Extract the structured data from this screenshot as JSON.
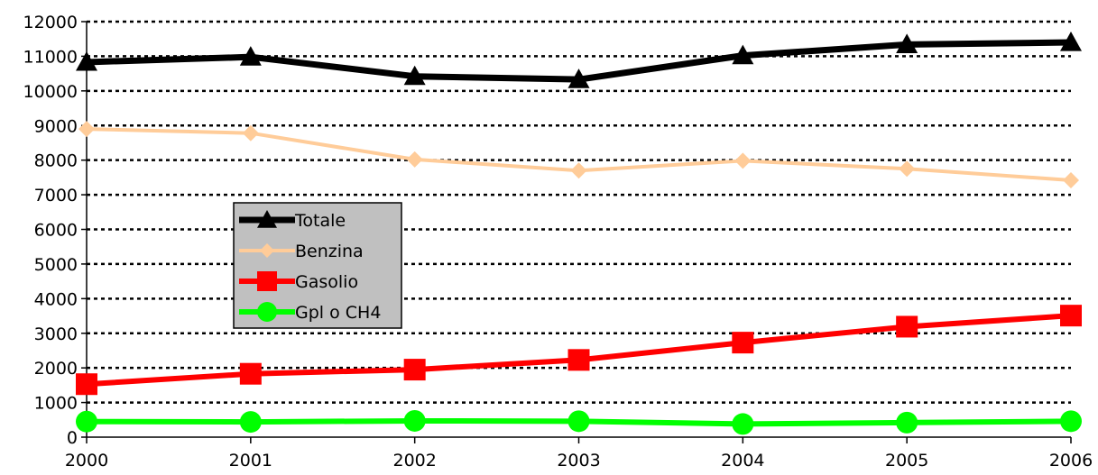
{
  "chart_data": {
    "type": "line",
    "title": "",
    "xlabel": "",
    "ylabel": "",
    "categories": [
      "2000",
      "2001",
      "2002",
      "2003",
      "2004",
      "2005",
      "2006"
    ],
    "ylim": [
      0,
      12000
    ],
    "yticks": [
      0,
      1000,
      2000,
      3000,
      4000,
      5000,
      6000,
      7000,
      8000,
      9000,
      10000,
      11000,
      12000
    ],
    "grid": "horizontal dotted",
    "legend_position": "center-left",
    "series": [
      {
        "name": "Totale",
        "color": "#000000",
        "marker": "triangle",
        "values": [
          10830,
          10980,
          10420,
          10330,
          11020,
          11340,
          11400
        ]
      },
      {
        "name": "Benzina",
        "color": "#FFCC99",
        "marker": "diamond",
        "values": [
          8900,
          8780,
          8020,
          7700,
          7980,
          7750,
          7420
        ]
      },
      {
        "name": "Gasolio",
        "color": "#FF0000",
        "marker": "square",
        "values": [
          1530,
          1830,
          1950,
          2230,
          2730,
          3190,
          3510
        ]
      },
      {
        "name": "Gpl o CH4",
        "color": "#00FF00",
        "marker": "circle",
        "values": [
          450,
          440,
          470,
          460,
          380,
          420,
          460
        ]
      }
    ]
  }
}
